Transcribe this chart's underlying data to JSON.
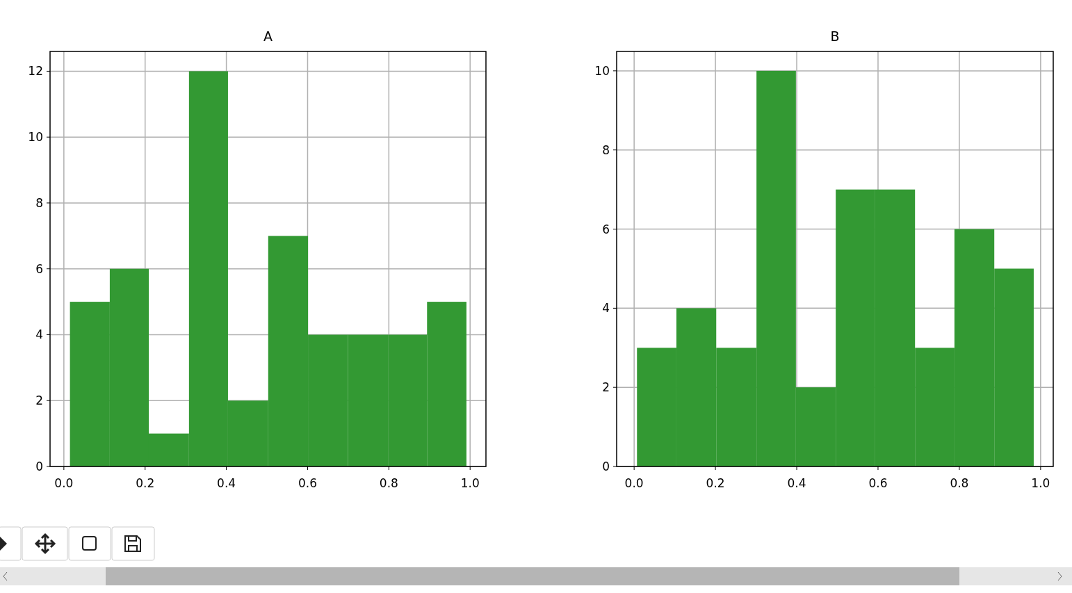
{
  "chart_data": [
    {
      "type": "histogram",
      "title": "A",
      "bins": [
        0.015,
        0.113,
        0.209,
        0.308,
        0.404,
        0.503,
        0.601,
        0.699,
        0.798,
        0.894,
        0.991
      ],
      "values": [
        5,
        6,
        1,
        12,
        2,
        7,
        4,
        4,
        4,
        5
      ],
      "color": "#339933",
      "xlim": [
        -0.034,
        1.039
      ],
      "ylim": [
        0,
        12.6
      ],
      "xticks": [
        {
          "value": 0,
          "label": "0.0"
        },
        {
          "value": 0.2,
          "label": "0.2"
        },
        {
          "value": 0.4,
          "label": "0.4"
        },
        {
          "value": 0.6,
          "label": "0.6"
        },
        {
          "value": 0.8,
          "label": "0.8"
        },
        {
          "value": 1,
          "label": "1.0"
        }
      ],
      "yticks": [
        0,
        2,
        4,
        6,
        8,
        10,
        12
      ],
      "grid": true
    },
    {
      "type": "histogram",
      "title": "B",
      "bins": [
        0.007,
        0.104,
        0.202,
        0.301,
        0.398,
        0.496,
        0.593,
        0.691,
        0.788,
        0.886,
        0.983
      ],
      "values": [
        3,
        4,
        3,
        10,
        2,
        7,
        7,
        3,
        6,
        5
      ],
      "color": "#339933",
      "xlim": [
        -0.043,
        1.031
      ],
      "ylim": [
        0,
        10.49
      ],
      "xticks": [
        {
          "value": 0,
          "label": "0.0"
        },
        {
          "value": 0.2,
          "label": "0.2"
        },
        {
          "value": 0.4,
          "label": "0.4"
        },
        {
          "value": 0.6,
          "label": "0.6"
        },
        {
          "value": 0.8,
          "label": "0.8"
        },
        {
          "value": 1,
          "label": "1.0"
        }
      ],
      "yticks": [
        0,
        2,
        4,
        6,
        8,
        10
      ],
      "grid": true
    }
  ]
}
